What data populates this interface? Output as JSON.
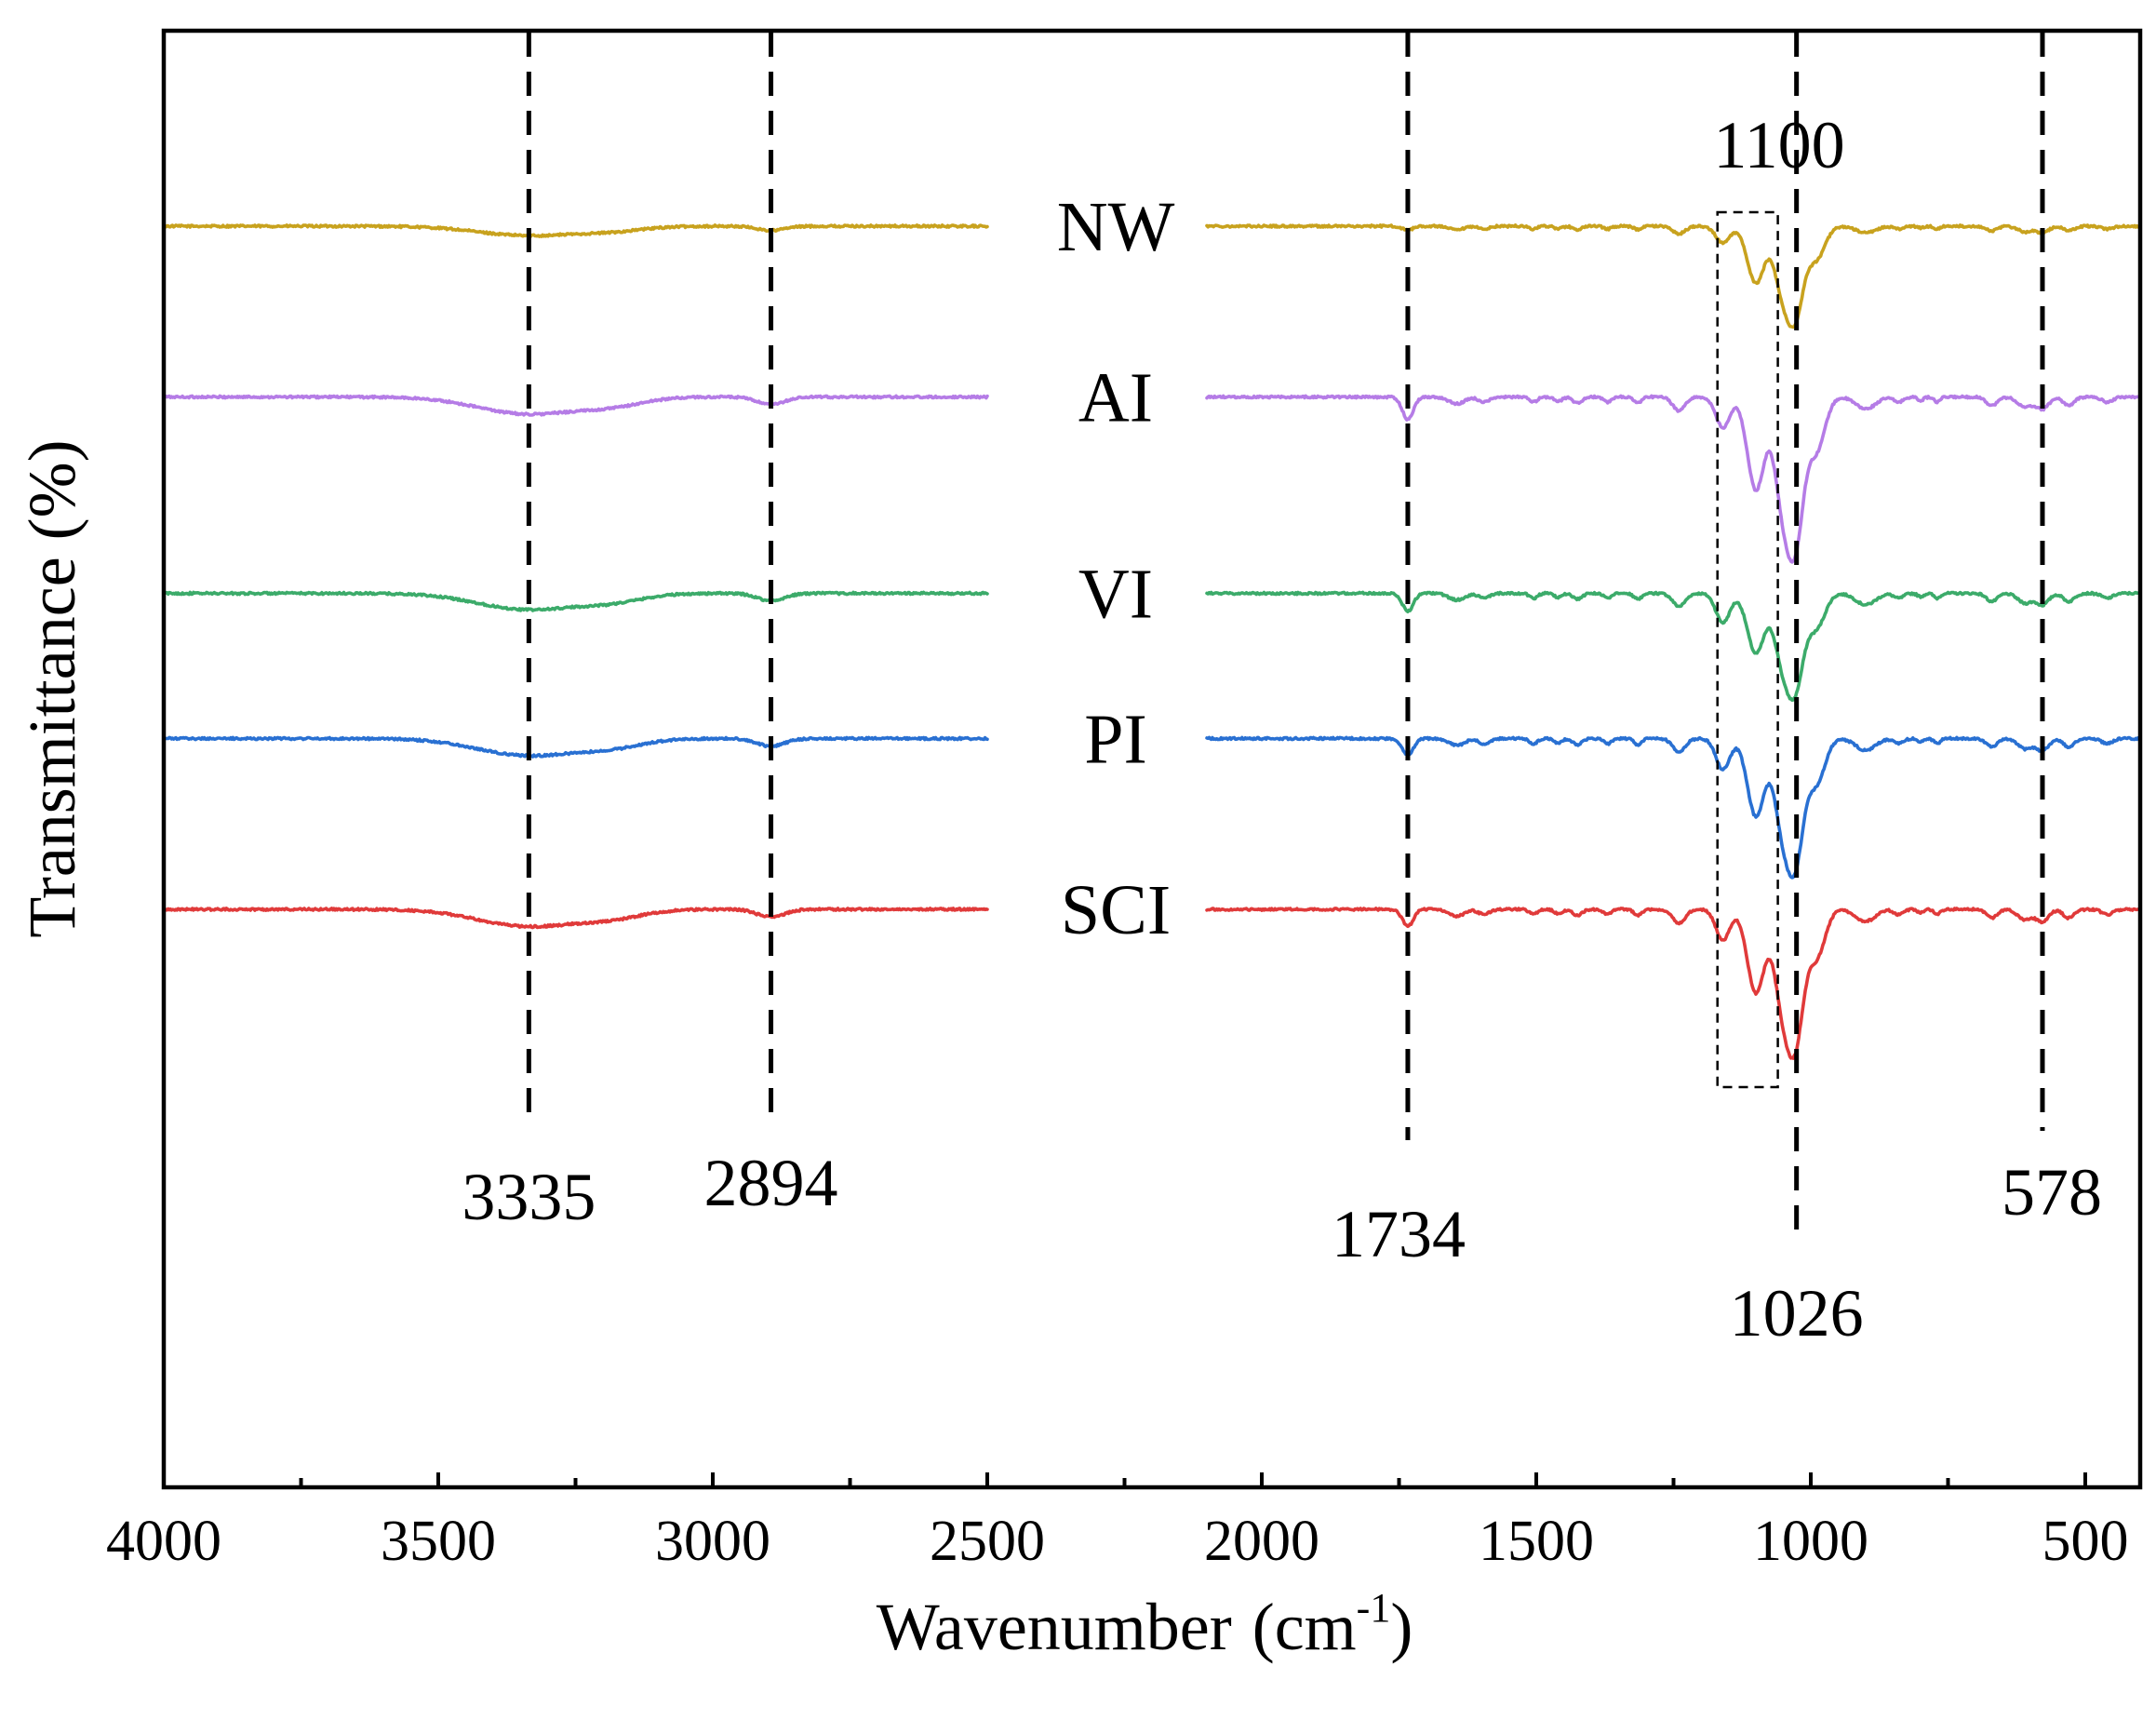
{
  "chart_data": {
    "type": "line",
    "title": "",
    "xlabel": "Wavenumber (cm-1)",
    "xlabel_main": "Wavenumber",
    "xlabel_unit_open": "(cm",
    "xlabel_unit_sup": "-1",
    "xlabel_unit_close": ")",
    "ylabel": "Transmittance (%)",
    "xlim": [
      4000,
      400
    ],
    "axis_break": [
      2500,
      2100
    ],
    "x_ticks": [
      {
        "value": 4000,
        "label": "4000"
      },
      {
        "value": 3500,
        "label": "3500"
      },
      {
        "value": 3000,
        "label": "3000"
      },
      {
        "value": 2500,
        "label": "2500"
      },
      {
        "value": 2000,
        "label": "2000"
      },
      {
        "value": 1500,
        "label": "1500"
      },
      {
        "value": 1000,
        "label": "1000"
      },
      {
        "value": 500,
        "label": "500"
      }
    ],
    "x_minor_ticks": [
      3750,
      3250,
      2750,
      2250,
      1750,
      1250,
      750
    ],
    "series": [
      {
        "name": "NW",
        "color": "#C8A21E",
        "offset": 0.0
      },
      {
        "name": "AI",
        "color": "#B57CE6",
        "offset": -1.0
      },
      {
        "name": "VI",
        "color": "#3CAB6A",
        "offset": -2.15
      },
      {
        "name": "PI",
        "color": "#2970D2",
        "offset": -3.0
      },
      {
        "name": "SCI",
        "color": "#E03A3A",
        "offset": -4.0
      }
    ],
    "peaks": [
      {
        "wavenumber": 3335,
        "label": "3335"
      },
      {
        "wavenumber": 2894,
        "label": "2894"
      },
      {
        "wavenumber": 1734,
        "label": "1734"
      },
      {
        "wavenumber": 1100,
        "label": "1100"
      },
      {
        "wavenumber": 1026,
        "label": "1026"
      },
      {
        "wavenumber": 578,
        "label": "578"
      }
    ],
    "highlight_region": {
      "from": 1170,
      "to": 1060
    },
    "grid": false,
    "legend": "inline labels"
  }
}
